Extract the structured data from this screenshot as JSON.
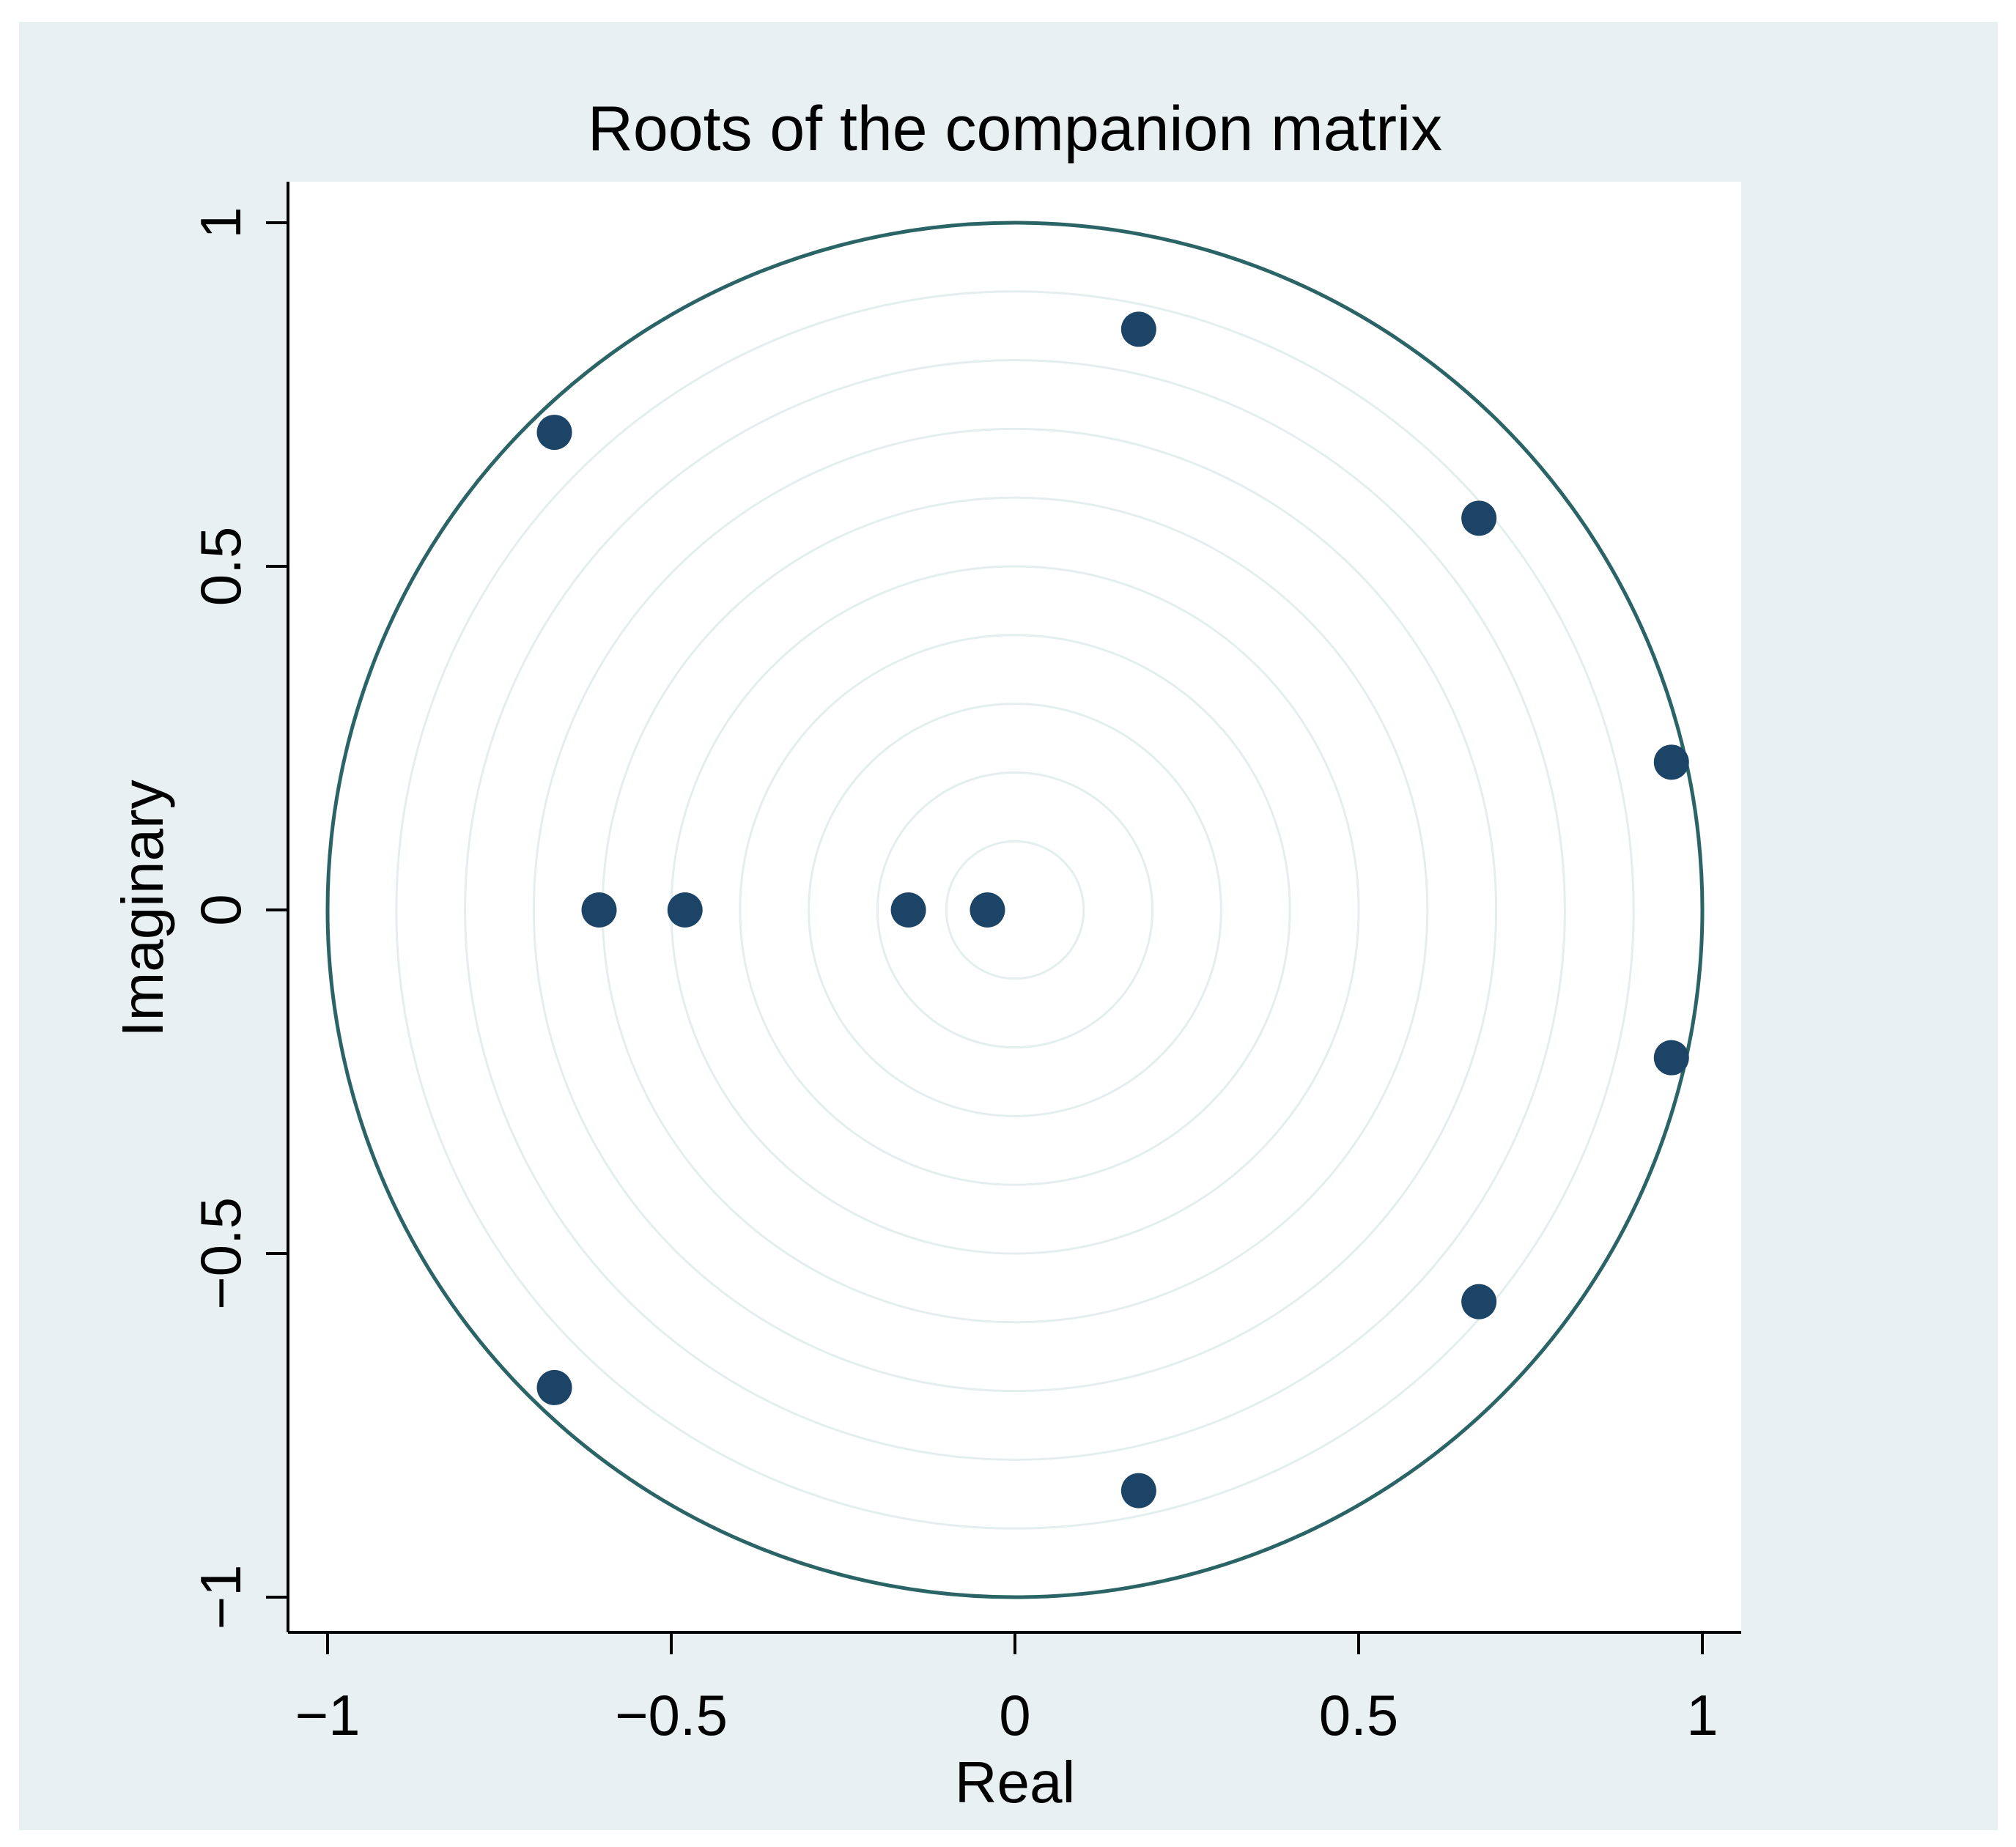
{
  "chart_data": {
    "type": "scatter",
    "title": "Roots of the companion matrix",
    "xlabel": "Real",
    "ylabel": "Imaginary",
    "xlim": [
      -1,
      1
    ],
    "ylim": [
      -1,
      1
    ],
    "x_ticks": [
      {
        "value": -1,
        "label": "−1"
      },
      {
        "value": -0.5,
        "label": "−0.5"
      },
      {
        "value": 0,
        "label": "0"
      },
      {
        "value": 0.5,
        "label": "0.5"
      },
      {
        "value": 1,
        "label": "1"
      }
    ],
    "y_ticks": [
      {
        "value": -1,
        "label": "−1"
      },
      {
        "value": -0.5,
        "label": "−0.5"
      },
      {
        "value": 0,
        "label": "0"
      },
      {
        "value": 0.5,
        "label": "0.5"
      },
      {
        "value": 1,
        "label": "1"
      }
    ],
    "unit_circle": true,
    "reference_circle_radii": [
      0.1,
      0.2,
      0.3,
      0.4,
      0.5,
      0.6,
      0.7,
      0.8,
      0.9
    ],
    "grid": false,
    "points": [
      {
        "x": 0.18,
        "y": 0.845
      },
      {
        "x": 0.18,
        "y": -0.845
      },
      {
        "x": -0.67,
        "y": 0.695
      },
      {
        "x": -0.67,
        "y": -0.695
      },
      {
        "x": 0.675,
        "y": 0.57
      },
      {
        "x": 0.675,
        "y": -0.57
      },
      {
        "x": 0.955,
        "y": 0.215
      },
      {
        "x": 0.955,
        "y": -0.215
      },
      {
        "x": -0.605,
        "y": 0
      },
      {
        "x": -0.48,
        "y": 0
      },
      {
        "x": -0.155,
        "y": 0
      },
      {
        "x": -0.04,
        "y": 0
      }
    ],
    "colors": {
      "outer_background": "#e9f0f2",
      "plot_background": "#ffffff",
      "unit_circle": "#2b6466",
      "reference_circles": "#e4eeee",
      "points": "#1b4466",
      "axes": "#000000"
    }
  }
}
